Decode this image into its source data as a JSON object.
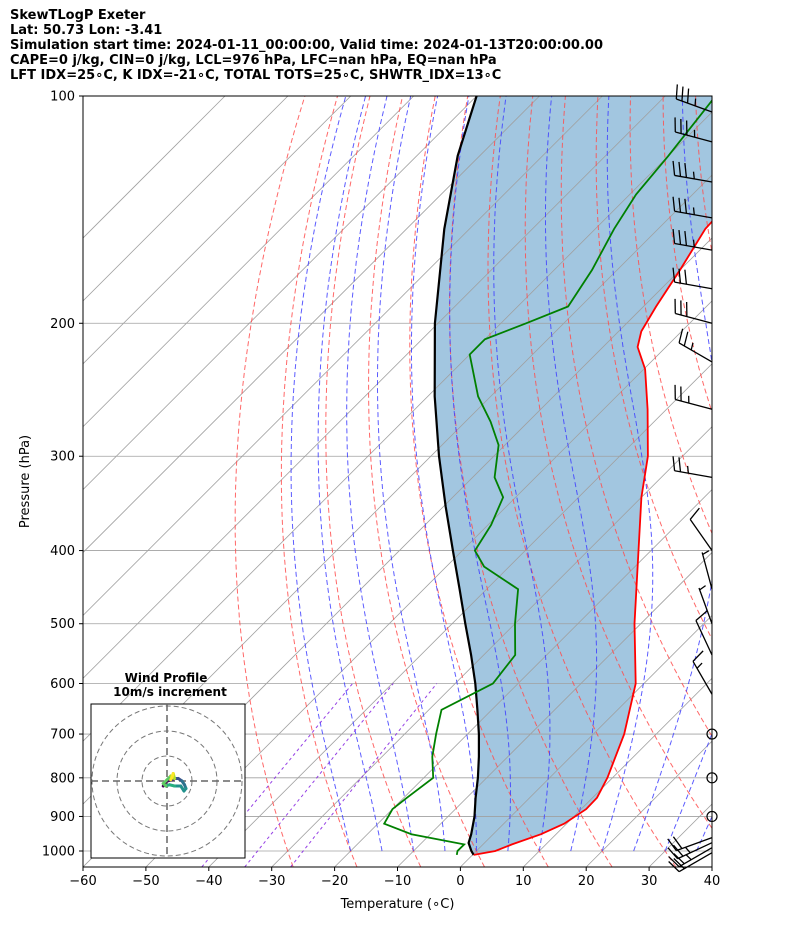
{
  "header": {
    "line1": "SkewTLogP Exeter",
    "line2": "Lat: 50.73   Lon: -3.41",
    "line3": "Simulation start time: 2024-01-11_00:00:00, Valid time: 2024-01-13T20:00:00.00",
    "line4": "CAPE=0 j/kg, CIN=0 j/kg, LCL=976 hPa, LFC=nan hPa, EQ=nan hPa",
    "line5": "LFT IDX=25∘C, K IDX=-21∘C, TOTAL TOTS=25∘C, SHWTR_IDX=13∘C"
  },
  "chart_data": {
    "type": "line",
    "subtype": "skew-T log-P diagram",
    "xlabel": "Temperature (∘C)",
    "ylabel": "Pressure (hPa)",
    "xlim": [
      -60,
      40
    ],
    "ylim": [
      1050,
      100
    ],
    "y_scale": "log",
    "x_ticks": [
      "−60",
      "−50",
      "−40",
      "−30",
      "−20",
      "−10",
      "0",
      "10",
      "20",
      "30",
      "40"
    ],
    "x_tick_values": [
      -60,
      -50,
      -40,
      -30,
      -20,
      -10,
      0,
      10,
      20,
      30,
      40
    ],
    "y_ticks": [
      "1000",
      "900",
      "800",
      "700",
      "600",
      "500",
      "400",
      "300",
      "200",
      "100"
    ],
    "y_tick_values": [
      1000,
      900,
      800,
      700,
      600,
      500,
      400,
      300,
      200,
      100
    ],
    "grid": true,
    "colors": {
      "temperature": "#ff0000",
      "dewpoint": "#008000",
      "parcel": "#000000",
      "shading": "#a2c6e0",
      "dry_adiabat": "#ff4d4d",
      "moist_adiabat": "#3f3fff",
      "mixing_ratio": "#8a2be2",
      "isotherm": "#a0a0a0"
    },
    "series": [
      {
        "role": "temperature",
        "pressure": [
          1012,
          1000,
          980,
          950,
          920,
          880,
          850,
          800,
          700,
          600,
          500,
          400,
          340,
          300,
          260,
          230,
          215,
          205,
          190,
          170,
          150,
          135,
          120,
          110,
          100
        ],
        "temperature": [
          0.2,
          3.0,
          4.6,
          7.6,
          9.6,
          10.8,
          10.7,
          9.2,
          4.9,
          -1.3,
          -11.0,
          -22.0,
          -30.0,
          -35.5,
          -43.0,
          -49.8,
          -54.5,
          -56.4,
          -58.0,
          -60.0,
          -62.5,
          -63.0,
          -62.0,
          -62.0,
          -62.0
        ]
      },
      {
        "role": "dewpoint",
        "pressure": [
          1012,
          1000,
          980,
          950,
          920,
          880,
          850,
          800,
          750,
          700,
          650,
          600,
          550,
          500,
          450,
          420,
          400,
          370,
          340,
          320,
          290,
          270,
          250,
          220,
          210,
          200,
          190,
          170,
          150,
          135,
          120,
          100
        ],
        "temperature": [
          -2.5,
          -3.0,
          -3.0,
          -13.0,
          -19.0,
          -20.0,
          -19.5,
          -18.5,
          -22.0,
          -25.0,
          -28.0,
          -24.0,
          -25.0,
          -30.0,
          -35.0,
          -44.0,
          -48.0,
          -49.5,
          -52.0,
          -56.5,
          -61.0,
          -66.0,
          -72.0,
          -80.0,
          -80.0,
          -76.0,
          -72.0,
          -74.0,
          -77.0,
          -79.0,
          -80.0,
          -82.0
        ]
      },
      {
        "role": "parcel",
        "pressure": [
          1012,
          1000,
          976,
          950,
          900,
          850,
          800,
          750,
          700,
          650,
          600,
          550,
          500,
          450,
          400,
          350,
          300,
          250,
          200,
          150,
          120,
          100
        ],
        "temperature": [
          0.2,
          -0.8,
          -2.5,
          -3.5,
          -5.8,
          -8.6,
          -11.4,
          -14.6,
          -18.2,
          -22.3,
          -26.8,
          -32.0,
          -37.9,
          -44.3,
          -51.5,
          -59.6,
          -68.7,
          -78.9,
          -90.5,
          -104.0,
          -113.5,
          -120.0
        ]
      }
    ],
    "wind_barbs": {
      "pressure": [
        1005,
        990,
        975,
        960,
        900,
        800,
        700,
        620,
        550,
        500,
        450,
        400,
        320,
        260,
        225,
        200,
        180,
        160,
        145,
        130,
        115,
        105
      ],
      "speed_kt": [
        20,
        25,
        25,
        20,
        0,
        0,
        0,
        15,
        10,
        5,
        5,
        10,
        25,
        25,
        25,
        30,
        30,
        35,
        35,
        35,
        35,
        35
      ],
      "direction_deg": [
        240,
        240,
        245,
        250,
        0,
        0,
        0,
        330,
        335,
        340,
        345,
        325,
        280,
        285,
        300,
        285,
        280,
        280,
        280,
        280,
        285,
        290
      ]
    },
    "hodograph": {
      "title": "Wind Profile",
      "subtitle": "10m/s increment",
      "u": [
        -1.5,
        -1.0,
        0.0,
        1.2,
        2.0,
        3.0,
        4.5,
        6.0,
        7.0,
        7.6,
        6.8,
        5.5,
        3.0,
        1.0,
        -0.5,
        -1.5,
        1.5,
        3.0,
        2.5,
        2.0,
        1.5
      ],
      "v": [
        -2.0,
        -1.0,
        0.0,
        0.3,
        0.5,
        1.0,
        1.0,
        0.0,
        -1.5,
        -3.0,
        -4.0,
        -2.0,
        -2.0,
        -1.5,
        -2.0,
        -1.0,
        2.0,
        1.0,
        3.0,
        1.5,
        0.5
      ]
    }
  }
}
